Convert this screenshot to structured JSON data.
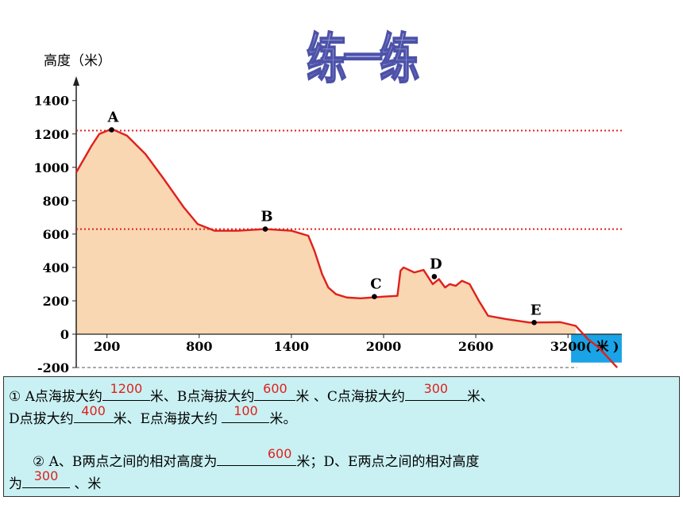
{
  "page_title": "练一练",
  "chart_data": {
    "type": "area",
    "ylabel": "高度（米）",
    "xlabel": "( 米 )",
    "ylim": [
      -200,
      1450
    ],
    "xlim": [
      0,
      3550
    ],
    "yticks": [
      -200,
      0,
      200,
      400,
      600,
      800,
      1000,
      1200,
      1400
    ],
    "xticks": [
      200,
      800,
      1400,
      2000,
      2600,
      3200
    ],
    "x_tick_labels": [
      "200",
      "800",
      "1400",
      "2000",
      "2600",
      "3200"
    ],
    "reference_lines": [
      1220,
      630
    ],
    "sea_from_x": 3220,
    "profile": {
      "x": [
        0,
        100,
        150,
        230,
        330,
        450,
        570,
        700,
        790,
        900,
        1050,
        1230,
        1400,
        1510,
        1550,
        1600,
        1640,
        1690,
        1760,
        1850,
        2000,
        2090,
        2110,
        2130,
        2200,
        2260,
        2320,
        2360,
        2400,
        2430,
        2470,
        2510,
        2560,
        2620,
        2680,
        2800,
        2950,
        3150,
        3250,
        3330,
        3400,
        3520
      ],
      "y": [
        970,
        1130,
        1200,
        1230,
        1190,
        1080,
        930,
        760,
        660,
        620,
        620,
        630,
        620,
        590,
        500,
        360,
        280,
        240,
        220,
        215,
        225,
        230,
        380,
        400,
        370,
        385,
        300,
        330,
        280,
        300,
        290,
        320,
        300,
        200,
        110,
        90,
        70,
        72,
        50,
        -30,
        -80,
        -200
      ]
    },
    "points": [
      {
        "label": "A",
        "x": 230,
        "y": 1225
      },
      {
        "label": "B",
        "x": 1230,
        "y": 630
      },
      {
        "label": "C",
        "x": 1940,
        "y": 225
      },
      {
        "label": "D",
        "x": 2330,
        "y": 345
      },
      {
        "label": "E",
        "x": 2980,
        "y": 70
      }
    ],
    "colors": {
      "land": "#f8d7b2",
      "line": "#e0201c",
      "sea": "#1aa3e6",
      "dotted": "#e0201c"
    }
  },
  "exercise": {
    "q1": {
      "s1": "① A点海拔大约",
      "a1": "1200",
      "s2": "米、B点海拔大约",
      "a2": "600",
      "s3": "米 、C点海拔大约",
      "a3": "300",
      "s4": "米、",
      "s5": "D点拔大约",
      "a4": "400",
      "s6": "米、E点海拔大约 ",
      "a5": "100",
      "s7": "米。"
    },
    "q2": {
      "s1": "② A、B两点之间的相对高度为",
      "a1": "600",
      "s2": "米；D、E两点之间的相对高度",
      "s3": "为",
      "a2": "300",
      "s4": " 、米"
    }
  }
}
